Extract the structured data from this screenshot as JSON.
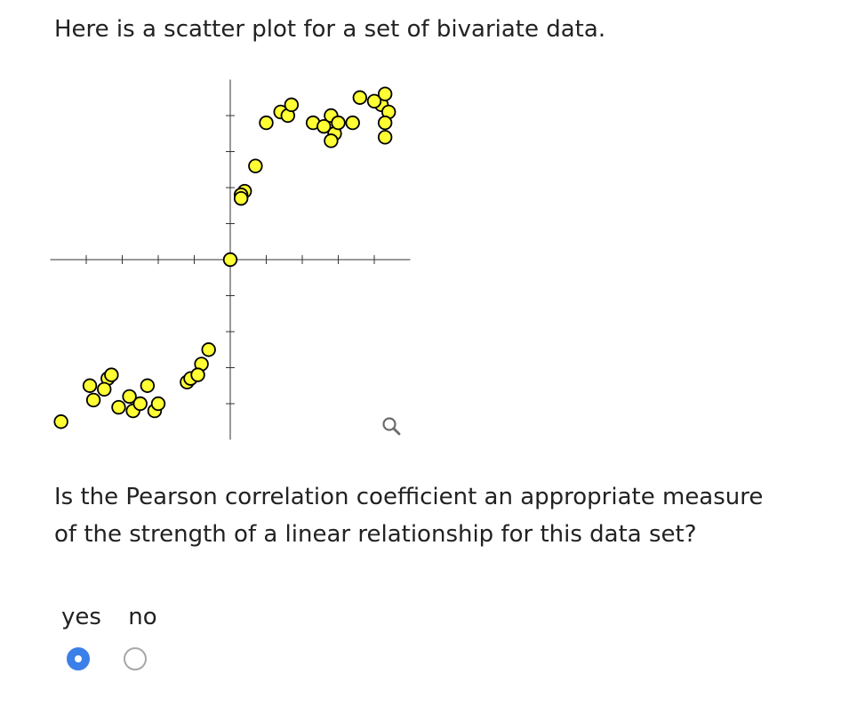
{
  "prompt": "Here is a scatter plot for a set of bivariate data.",
  "question": "Is the Pearson correlation coefficient an appropriate measure of the strength of a linear relationship for this data set?",
  "options": {
    "yes_label": "yes",
    "no_label": "no",
    "selected": "yes"
  },
  "colors": {
    "point_fill": "#ffff33",
    "point_stroke": "#000000",
    "radio_selected": "#3b7fe8",
    "radio_border": "#a7a7a7"
  },
  "icons": {
    "zoom": "magnifier-icon"
  },
  "chart_data": {
    "type": "scatter",
    "title": "",
    "xlabel": "",
    "ylabel": "",
    "grid": false,
    "legend": "none",
    "tick_labels": false,
    "x": [
      -4.7,
      -3.9,
      -3.8,
      -3.4,
      -3.5,
      -3.3,
      -3.1,
      -2.7,
      -2.5,
      -2.8,
      -2.3,
      -2.1,
      -2.0,
      -1.2,
      -1.1,
      -0.8,
      -0.9,
      -0.6,
      0.0,
      0.4,
      0.3,
      0.3,
      0.7,
      1.0,
      1.4,
      1.6,
      1.7,
      2.3,
      2.6,
      2.8,
      2.9,
      2.8,
      3.0,
      3.4,
      3.6,
      4.2,
      4.0,
      4.3,
      4.4,
      4.3,
      4.3
    ],
    "y": [
      -4.5,
      -3.5,
      -3.9,
      -3.3,
      -3.6,
      -3.2,
      -4.1,
      -4.2,
      -4.0,
      -3.8,
      -3.5,
      -4.2,
      -4.0,
      -3.4,
      -3.3,
      -2.9,
      -3.2,
      -2.5,
      0.0,
      1.9,
      1.8,
      1.7,
      2.6,
      3.8,
      4.1,
      4.0,
      4.3,
      3.8,
      3.7,
      4.0,
      3.5,
      3.3,
      3.8,
      3.8,
      4.5,
      4.3,
      4.4,
      4.6,
      4.1,
      3.8,
      3.4
    ],
    "xlim": [
      -5,
      5
    ],
    "ylim": [
      -5,
      5
    ],
    "xticks": [
      -4,
      -3,
      -2,
      -1,
      1,
      2,
      3,
      4
    ],
    "yticks": [
      -4,
      -3,
      -2,
      -1,
      1,
      2,
      3,
      4
    ]
  }
}
